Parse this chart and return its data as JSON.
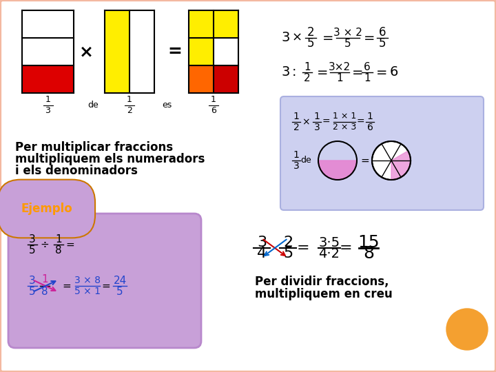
{
  "bg_color": "#ffffff",
  "border_color": "#f4b8a0",
  "r1_color": "#dd0000",
  "r2_color": "#ffee00",
  "r3_yellow": "#ffee00",
  "r3_orange": "#ff6600",
  "r3_red": "#cc0000",
  "mult_box_color": "#ccd0f0",
  "ejemplo_box_color": "#c8a0d8",
  "ejemplo_border": "#b888cc",
  "orange_circle_color": "#f4a030",
  "pink_color": "#e880d0",
  "title1_l1": "Per multiplicar fraccions",
  "title1_l2": "multipliquem els numeradors",
  "title1_l3": "i els denominadors",
  "title2_l1": "Per dividir fraccions,",
  "title2_l2": "multipliquem en creu",
  "ejemplo_label": "Ejemplo"
}
